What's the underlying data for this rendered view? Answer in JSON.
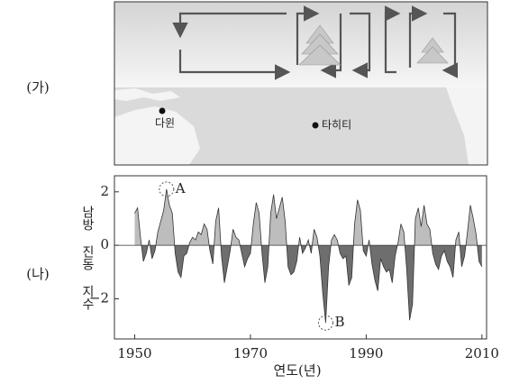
{
  "panels": {
    "top_label": "(가)",
    "bottom_label": "(나)",
    "place_1": "다윈",
    "place_2": "타히티"
  },
  "chart_data": {
    "type": "area",
    "x_label": "연도(년)",
    "y_label": "남방 진동 지수",
    "x": [
      1950,
      1950.5,
      1951,
      1951.5,
      1952,
      1952.5,
      1953,
      1953.5,
      1954,
      1954.5,
      1955,
      1955.5,
      1956,
      1956.5,
      1957,
      1957.5,
      1958,
      1958.5,
      1959,
      1959.5,
      1960,
      1960.5,
      1961,
      1961.5,
      1962,
      1962.5,
      1963,
      1963.5,
      1964,
      1964.5,
      1965,
      1965.5,
      1966,
      1966.5,
      1967,
      1967.5,
      1968,
      1968.5,
      1969,
      1969.5,
      1970,
      1970.5,
      1971,
      1971.5,
      1972,
      1972.5,
      1973,
      1973.5,
      1974,
      1974.5,
      1975,
      1975.5,
      1976,
      1976.5,
      1977,
      1977.5,
      1978,
      1978.5,
      1979,
      1979.5,
      1980,
      1980.5,
      1981,
      1981.5,
      1982,
      1982.5,
      1983,
      1983.5,
      1984,
      1984.5,
      1985,
      1985.5,
      1986,
      1986.5,
      1987,
      1987.5,
      1988,
      1988.5,
      1989,
      1989.5,
      1990,
      1990.5,
      1991,
      1991.5,
      1992,
      1992.5,
      1993,
      1993.5,
      1994,
      1994.5,
      1995,
      1995.5,
      1996,
      1996.5,
      1997,
      1997.5,
      1998,
      1998.5,
      1999,
      1999.5,
      2000,
      2000.5,
      2001,
      2001.5,
      2002,
      2002.5,
      2003,
      2003.5,
      2004,
      2004.5,
      2005,
      2005.5,
      2006,
      2006.5,
      2007,
      2007.5,
      2008,
      2008.5,
      2009,
      2009.5,
      2010
    ],
    "values": [
      1.2,
      1.4,
      0.3,
      -0.6,
      -0.3,
      0.2,
      -0.5,
      -0.2,
      0.5,
      0.9,
      1.3,
      2.1,
      1.5,
      1.2,
      -0.3,
      -1.0,
      -1.2,
      -0.4,
      -0.3,
      0.1,
      0.3,
      0.2,
      0.5,
      0.4,
      0.8,
      0.6,
      -0.2,
      -0.7,
      0.9,
      1.4,
      -0.4,
      -1.4,
      -0.8,
      -0.2,
      0.6,
      0.3,
      0.2,
      -0.3,
      -0.8,
      -0.5,
      -0.3,
      0.8,
      1.6,
      1.2,
      -0.3,
      -1.4,
      -0.8,
      1.2,
      1.9,
      1.0,
      1.4,
      1.8,
      0.9,
      -0.8,
      -1.1,
      -1.0,
      -0.6,
      0.3,
      -0.3,
      -0.1,
      0.2,
      -0.3,
      0.6,
      0.3,
      -0.4,
      -1.8,
      -2.9,
      -0.8,
      0.2,
      0.4,
      0.2,
      -0.3,
      -0.5,
      -0.4,
      -1.5,
      -1.2,
      0.8,
      1.7,
      1.3,
      -0.2,
      -0.4,
      0.2,
      -0.7,
      -1.3,
      -1.7,
      -0.5,
      -0.8,
      -1.0,
      -0.9,
      -1.4,
      -0.4,
      0.1,
      0.8,
      0.5,
      -0.9,
      -2.8,
      -2.2,
      1.0,
      1.4,
      0.7,
      1.5,
      0.8,
      0.6,
      -0.3,
      -0.7,
      -0.9,
      -0.4,
      -0.2,
      -0.6,
      -0.8,
      -1.2,
      0.2,
      0.5,
      -0.8,
      -0.4,
      0.5,
      1.5,
      1.0,
      0.4,
      -0.6,
      -0.8
    ],
    "positive_color": "#bdbdbd",
    "negative_color": "#6e6e6e",
    "xlim": [
      1946.5,
      2010.8
    ],
    "ylim": [
      -3.5,
      2.6
    ],
    "xticks": [
      1950,
      1970,
      1990,
      2010
    ],
    "yticks": [
      2,
      0,
      {
        "value": -2,
        "label": "−2"
      }
    ],
    "annotations": [
      {
        "text": "A",
        "x": 1955.5,
        "y": 2.1
      },
      {
        "text": "B",
        "x": 1983,
        "y": -2.9
      }
    ]
  }
}
